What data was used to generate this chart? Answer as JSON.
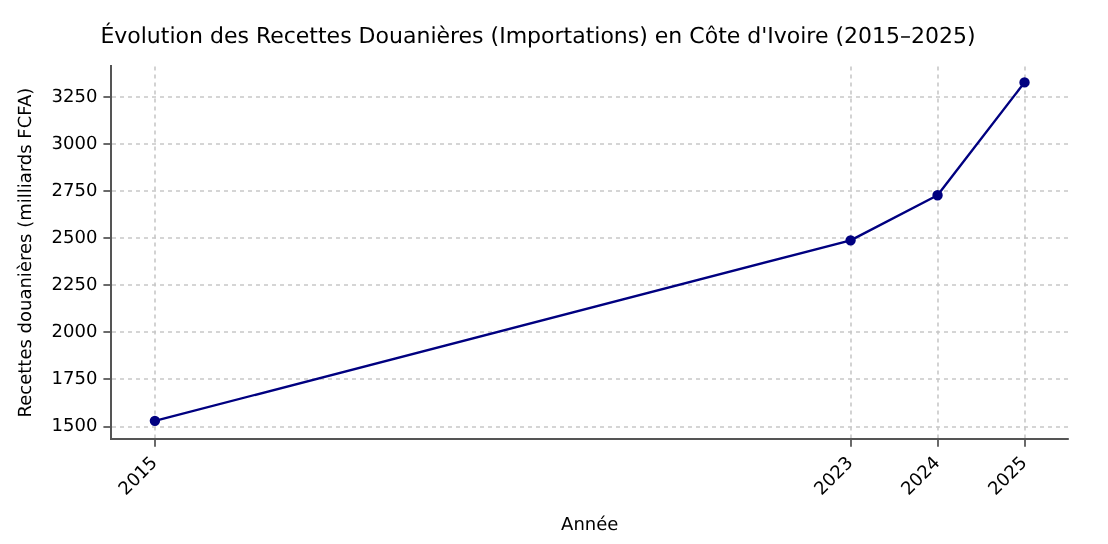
{
  "chart_data": {
    "type": "line",
    "title": "Évolution des Recettes Douanières (Importations) en Côte d'Ivoire (2015–2025)",
    "xlabel": "Année",
    "ylabel": "Recettes douanières (milliards FCFA)",
    "x": [
      2015,
      2023,
      2024,
      2025
    ],
    "series": [
      {
        "color": "#000080",
        "values": [
          1530,
          2490,
          2730,
          3330
        ]
      }
    ],
    "xlim": [
      2014.5,
      2025.5
    ],
    "xticks": [
      2015,
      2023,
      2024,
      2025
    ],
    "ylim": [
      1435,
      3415
    ],
    "yticks": [
      1500,
      1750,
      2000,
      2250,
      2500,
      2750,
      3000,
      3250
    ],
    "grid": true,
    "marker": "circle",
    "line_style": "solid",
    "legend": false
  }
}
